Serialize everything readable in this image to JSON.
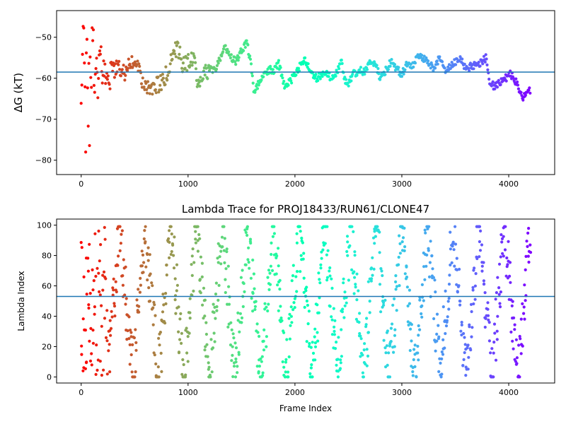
{
  "chart_data": [
    {
      "type": "scatter",
      "title": "",
      "xlabel": "",
      "ylabel": "ΔG (kT)",
      "xlim": [
        -230,
        4430
      ],
      "ylim": [
        -83.5,
        -43.5
      ],
      "xticks": [
        0,
        1000,
        2000,
        3000,
        4000
      ],
      "xtick_labels": [
        "0",
        "1000",
        "2000",
        "3000",
        "4000"
      ],
      "yticks": [
        -80,
        -70,
        -60,
        -50
      ],
      "ytick_labels": [
        "−80",
        "−70",
        "−60",
        "−50"
      ],
      "hline": -58.5,
      "hline_color": "#1f77b4",
      "colormap": "rainbow (red → violet with frame index)",
      "grid": false,
      "x_range": [
        0,
        4200
      ],
      "trace_envelope": [
        [
          5,
          -50
        ],
        [
          30,
          -52
        ],
        [
          60,
          -55
        ],
        [
          90,
          -52
        ],
        [
          120,
          -55
        ],
        [
          160,
          -58
        ],
        [
          200,
          -57
        ],
        [
          250,
          -60
        ],
        [
          300,
          -58
        ],
        [
          350,
          -57
        ],
        [
          400,
          -59
        ],
        [
          450,
          -56
        ],
        [
          500,
          -55
        ],
        [
          550,
          -59
        ],
        [
          600,
          -62
        ],
        [
          650,
          -63
        ],
        [
          700,
          -62
        ],
        [
          750,
          -61
        ],
        [
          800,
          -59
        ],
        [
          850,
          -55
        ],
        [
          900,
          -52
        ],
        [
          950,
          -57
        ],
        [
          1000,
          -56
        ],
        [
          1050,
          -55
        ],
        [
          1100,
          -62
        ],
        [
          1150,
          -59
        ],
        [
          1200,
          -58
        ],
        [
          1250,
          -58
        ],
        [
          1300,
          -55
        ],
        [
          1350,
          -52.5
        ],
        [
          1400,
          -55
        ],
        [
          1450,
          -56
        ],
        [
          1500,
          -53
        ],
        [
          1550,
          -51.5
        ],
        [
          1580,
          -55
        ],
        [
          1620,
          -64
        ],
        [
          1660,
          -61
        ],
        [
          1700,
          -59
        ],
        [
          1750,
          -58
        ],
        [
          1800,
          -58
        ],
        [
          1850,
          -56.5
        ],
        [
          1900,
          -62
        ],
        [
          1950,
          -61
        ],
        [
          2000,
          -59
        ],
        [
          2050,
          -57
        ],
        [
          2100,
          -55.5
        ],
        [
          2150,
          -59
        ],
        [
          2200,
          -60
        ],
        [
          2250,
          -59
        ],
        [
          2300,
          -59
        ],
        [
          2350,
          -60
        ],
        [
          2400,
          -58
        ],
        [
          2430,
          -55
        ],
        [
          2460,
          -60
        ],
        [
          2500,
          -61.5
        ],
        [
          2550,
          -59
        ],
        [
          2600,
          -58
        ],
        [
          2650,
          -58.5
        ],
        [
          2700,
          -56
        ],
        [
          2750,
          -56.5
        ],
        [
          2800,
          -60
        ],
        [
          2850,
          -58
        ],
        [
          2900,
          -56
        ],
        [
          2950,
          -57.5
        ],
        [
          3000,
          -59
        ],
        [
          3050,
          -56.5
        ],
        [
          3100,
          -57
        ],
        [
          3150,
          -54.5
        ],
        [
          3200,
          -55
        ],
        [
          3250,
          -56
        ],
        [
          3300,
          -58
        ],
        [
          3350,
          -55
        ],
        [
          3400,
          -58
        ],
        [
          3450,
          -57
        ],
        [
          3500,
          -56
        ],
        [
          3550,
          -55
        ],
        [
          3600,
          -58
        ],
        [
          3650,
          -57
        ],
        [
          3700,
          -57
        ],
        [
          3750,
          -56
        ],
        [
          3790,
          -55
        ],
        [
          3820,
          -61
        ],
        [
          3870,
          -62
        ],
        [
          3920,
          -61
        ],
        [
          3970,
          -60
        ],
        [
          4020,
          -59
        ],
        [
          4070,
          -61
        ],
        [
          4100,
          -63
        ],
        [
          4130,
          -65
        ],
        [
          4160,
          -64
        ],
        [
          4200,
          -63
        ]
      ]
    },
    {
      "type": "scatter",
      "title": "Lambda Trace for PROJ18433/RUN61/CLONE47",
      "xlabel": "Frame Index",
      "ylabel": "Lambda Index",
      "xlim": [
        -230,
        4430
      ],
      "ylim": [
        -4,
        104
      ],
      "xticks": [
        0,
        1000,
        2000,
        3000,
        4000
      ],
      "xtick_labels": [
        "0",
        "1000",
        "2000",
        "3000",
        "4000"
      ],
      "yticks": [
        0,
        20,
        40,
        60,
        80,
        100
      ],
      "ytick_labels": [
        "0",
        "20",
        "40",
        "60",
        "80",
        "100"
      ],
      "hline": 53,
      "hline_color": "#1f77b4",
      "colormap": "rainbow (red → violet with frame index)",
      "grid": false,
      "x_range": [
        0,
        4200
      ],
      "lambda_range": [
        0,
        99
      ]
    }
  ]
}
